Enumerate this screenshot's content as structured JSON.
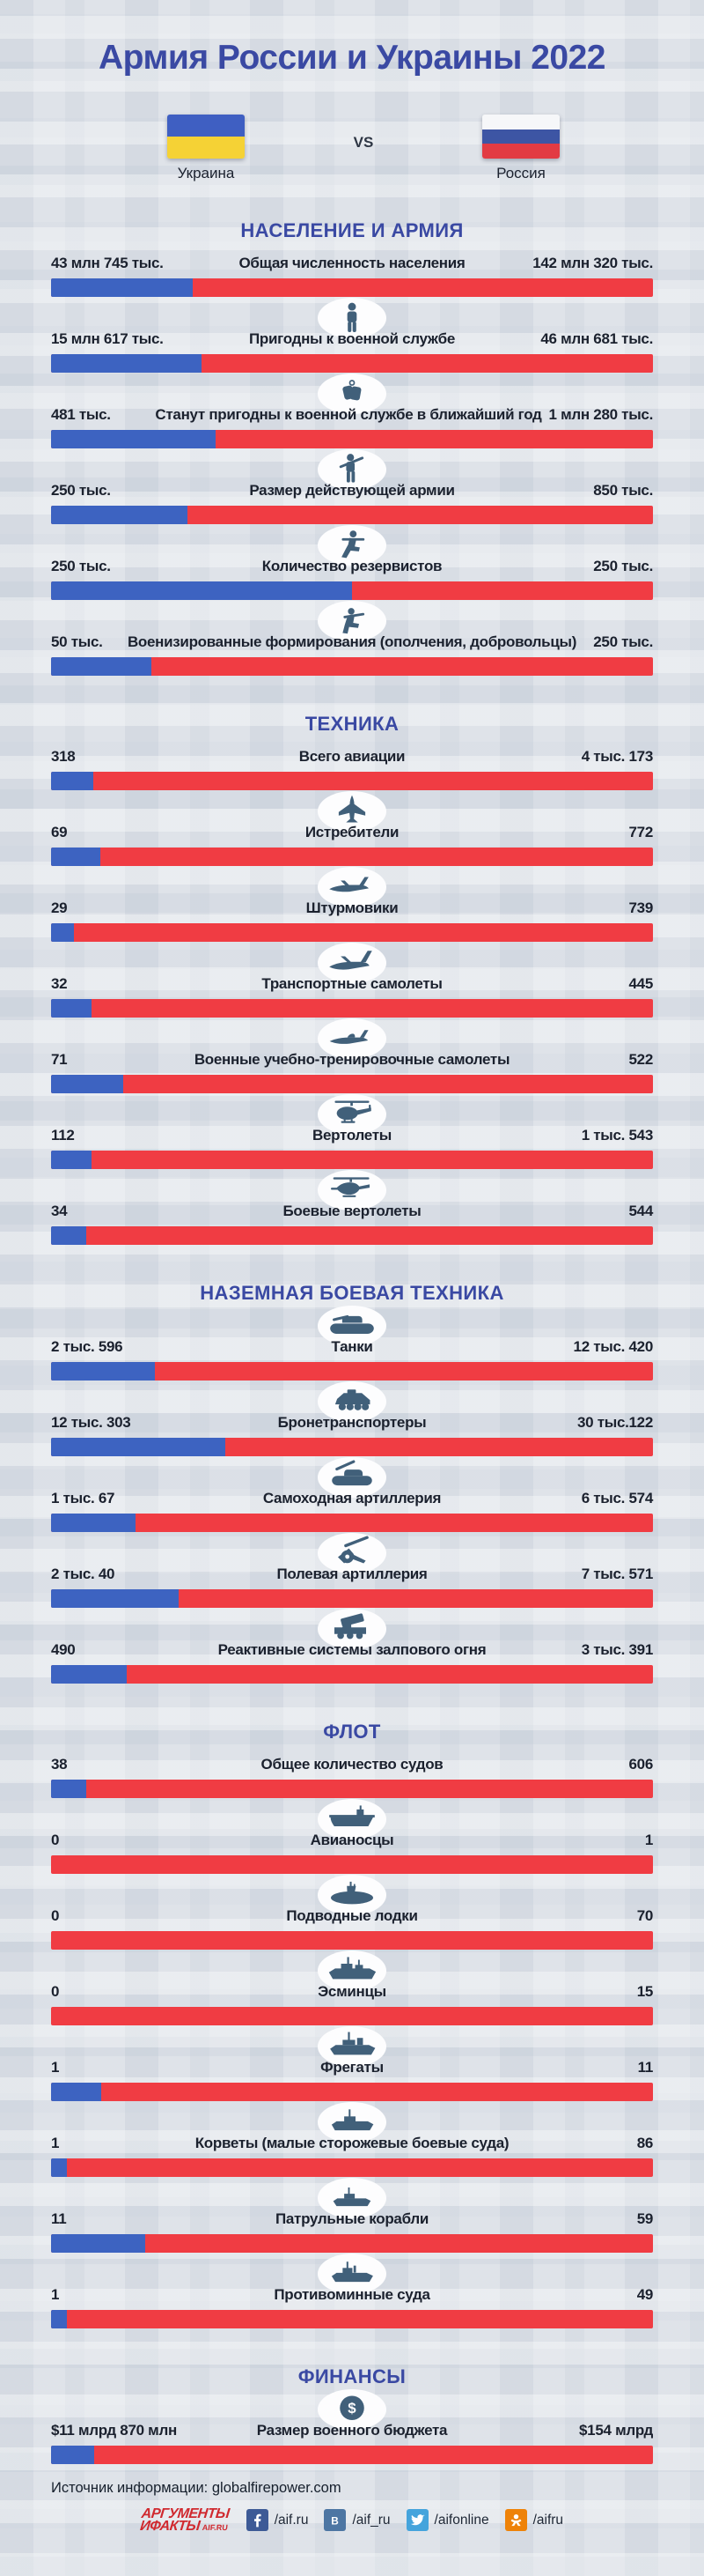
{
  "title": "Армия России и Украины 2022",
  "vs_label": "VS",
  "countries": {
    "left": {
      "name": "Украина",
      "flag": "ukraine-flag",
      "color": "#3d63c1"
    },
    "right": {
      "name": "Россия",
      "flag": "russia-flag",
      "color": "#f03c43"
    }
  },
  "colors": {
    "ukraine_bar": "#3d63c1",
    "russia_bar": "#f03c43",
    "heading_blue": "#3a49a3",
    "icon_slate": "#41607a",
    "background": "#dfe3e9",
    "aif_red": "#d0292f"
  },
  "source_label": "Источник информации: globalfirepower.com",
  "footer": {
    "logo_line1": "АРГУМЕНТЫ",
    "logo_line2": "ИФАКТЫ",
    "logo_suffix": "AIF.RU",
    "socials": [
      {
        "icon": "facebook-icon",
        "handle": "/aif.ru"
      },
      {
        "icon": "vk-icon",
        "handle": "/aif_ru"
      },
      {
        "icon": "twitter-icon",
        "handle": "/aifonline"
      },
      {
        "icon": "odnoklassniki-icon",
        "handle": "/aifru"
      }
    ]
  },
  "chart_data": {
    "type": "bar",
    "orientation": "paired-horizontal",
    "series_names": [
      "Украина",
      "Россия"
    ],
    "legend_position": "top-flags",
    "grid": false,
    "sections": [
      {
        "title": "НАСЕЛЕНИЕ И АРМИЯ",
        "rows": [
          {
            "label": "Общая численность населения",
            "icon": null,
            "ukraine": {
              "text": "43 млн 745 тыс.",
              "value": 43745000
            },
            "russia": {
              "text": "142 млн 320 тыс.",
              "value": 142320000
            }
          },
          {
            "label": "Пригодны к военной службе",
            "icon": "person-icon",
            "ukraine": {
              "text": "15 млн 617 тыс.",
              "value": 15617000
            },
            "russia": {
              "text": "46 млн 681 тыс.",
              "value": 46681000
            }
          },
          {
            "label": "Станут пригодны к военной службе в ближайший год",
            "icon": "dog-tags-icon",
            "ukraine": {
              "text": "481 тыс.",
              "value": 481000
            },
            "russia": {
              "text": "1 млн 280 тыс.",
              "value": 1280000
            }
          },
          {
            "label": "Размер действующей армии",
            "icon": "soldier-icon",
            "ukraine": {
              "text": "250 тыс.",
              "value": 250000
            },
            "russia": {
              "text": "850 тыс.",
              "value": 850000
            }
          },
          {
            "label": "Количество резервистов",
            "icon": "kneeling-soldier-icon",
            "ukraine": {
              "text": "250 тыс.",
              "value": 250000
            },
            "russia": {
              "text": "250 тыс.",
              "value": 250000
            }
          },
          {
            "label": "Военизированные формирования (ополчения, добровольцы)",
            "icon": "crouching-soldier-icon",
            "ukraine": {
              "text": "50 тыс.",
              "value": 50000
            },
            "russia": {
              "text": "250 тыс.",
              "value": 250000
            }
          }
        ]
      },
      {
        "title": "ТЕХНИКА",
        "rows": [
          {
            "label": "Всего авиации",
            "icon": null,
            "ukraine": {
              "text": "318",
              "value": 318
            },
            "russia": {
              "text": "4 тыс. 173",
              "value": 4173
            }
          },
          {
            "label": "Истребители",
            "icon": "fighter-jet-icon",
            "ukraine": {
              "text": "69",
              "value": 69
            },
            "russia": {
              "text": "772",
              "value": 772
            }
          },
          {
            "label": "Штурмовики",
            "icon": "attack-aircraft-icon",
            "ukraine": {
              "text": "29",
              "value": 29
            },
            "russia": {
              "text": "739",
              "value": 739
            }
          },
          {
            "label": "Транспортные самолеты",
            "icon": "transport-plane-icon",
            "ukraine": {
              "text": "32",
              "value": 32
            },
            "russia": {
              "text": "445",
              "value": 445
            }
          },
          {
            "label": "Военные учебно-тренировочные самолеты",
            "icon": "trainer-jet-icon",
            "ukraine": {
              "text": "71",
              "value": 71
            },
            "russia": {
              "text": "522",
              "value": 522
            }
          },
          {
            "label": "Вертолеты",
            "icon": "helicopter-icon",
            "ukraine": {
              "text": "112",
              "value": 112
            },
            "russia": {
              "text": "1 тыс. 543",
              "value": 1543
            }
          },
          {
            "label": "Боевые вертолеты",
            "icon": "attack-helicopter-icon",
            "ukraine": {
              "text": "34",
              "value": 34
            },
            "russia": {
              "text": "544",
              "value": 544
            }
          }
        ]
      },
      {
        "title": "НАЗЕМНАЯ БОЕВАЯ ТЕХНИКА",
        "rows": [
          {
            "label": "Танки",
            "icon": "tank-icon",
            "ukraine": {
              "text": "2 тыс. 596",
              "value": 2596
            },
            "russia": {
              "text": "12 тыс. 420",
              "value": 12420
            }
          },
          {
            "label": "Бронетранспортеры",
            "icon": "apc-icon",
            "ukraine": {
              "text": "12 тыс. 303",
              "value": 12303
            },
            "russia": {
              "text": "30 тыс.122",
              "value": 30122
            }
          },
          {
            "label": "Самоходная артиллерия",
            "icon": "self-propelled-artillery-icon",
            "ukraine": {
              "text": "1 тыс. 67",
              "value": 1067
            },
            "russia": {
              "text": "6 тыс. 574",
              "value": 6574
            }
          },
          {
            "label": "Полевая артиллерия",
            "icon": "field-artillery-icon",
            "ukraine": {
              "text": "2 тыс. 40",
              "value": 2040
            },
            "russia": {
              "text": "7 тыс. 571",
              "value": 7571
            }
          },
          {
            "label": "Реактивные системы залпового огня",
            "icon": "mlrs-icon",
            "ukraine": {
              "text": "490",
              "value": 490
            },
            "russia": {
              "text": "3 тыс. 391",
              "value": 3391
            }
          }
        ]
      },
      {
        "title": "ФЛОТ",
        "rows": [
          {
            "label": "Общее количество судов",
            "icon": null,
            "ukraine": {
              "text": "38",
              "value": 38
            },
            "russia": {
              "text": "606",
              "value": 606
            }
          },
          {
            "label": "Авианосцы",
            "icon": "aircraft-carrier-icon",
            "ukraine": {
              "text": "0",
              "value": 0
            },
            "russia": {
              "text": "1",
              "value": 1
            }
          },
          {
            "label": "Подводные лодки",
            "icon": "submarine-icon",
            "ukraine": {
              "text": "0",
              "value": 0
            },
            "russia": {
              "text": "70",
              "value": 70
            }
          },
          {
            "label": "Эсминцы",
            "icon": "destroyer-icon",
            "ukraine": {
              "text": "0",
              "value": 0
            },
            "russia": {
              "text": "15",
              "value": 15
            }
          },
          {
            "label": "Фрегаты",
            "icon": "frigate-icon",
            "ukraine": {
              "text": "1",
              "value": 1
            },
            "russia": {
              "text": "11",
              "value": 11
            }
          },
          {
            "label": "Корветы (малые сторожевые боевые суда)",
            "icon": "corvette-icon",
            "ukraine": {
              "text": "1",
              "value": 1
            },
            "russia": {
              "text": "86",
              "value": 86
            }
          },
          {
            "label": "Патрульные корабли",
            "icon": "patrol-ship-icon",
            "ukraine": {
              "text": "11",
              "value": 11
            },
            "russia": {
              "text": "59",
              "value": 59
            }
          },
          {
            "label": "Противоминные суда",
            "icon": "minesweeper-icon",
            "ukraine": {
              "text": "1",
              "value": 1
            },
            "russia": {
              "text": "49",
              "value": 49
            }
          }
        ]
      },
      {
        "title": "ФИНАНСЫ",
        "rows": [
          {
            "label": "Размер военного бюджета",
            "icon": "dollar-icon",
            "ukraine": {
              "text": "$11 млрд 870 млн",
              "value": 11870000000
            },
            "russia": {
              "text": "$154 млрд",
              "value": 154000000000
            }
          }
        ]
      }
    ]
  }
}
